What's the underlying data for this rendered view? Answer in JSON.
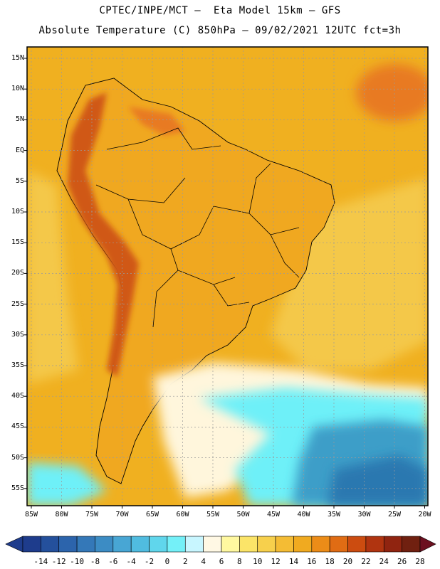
{
  "header": {
    "line1": "CPTEC/INPE/MCT –  Eta Model 15km – GFS",
    "line2": "Absolute Temperature (C) 850hPa – 09/02/2021 12UTC fct=3h"
  },
  "map": {
    "lat_labels": [
      "15N",
      "10N",
      "5N",
      "EQ",
      "5S",
      "10S",
      "15S",
      "20S",
      "25S",
      "30S",
      "35S",
      "40S",
      "45S",
      "50S",
      "55S"
    ],
    "lon_labels": [
      "85W",
      "80W",
      "75W",
      "70W",
      "65W",
      "60W",
      "55W",
      "50W",
      "45W",
      "40W",
      "35W",
      "30W",
      "25W",
      "20W"
    ],
    "colors": {
      "ocean_warm": "#f0b020",
      "ocean_mid": "#f4c848",
      "land": "#f0a820",
      "highland": "#e87a20",
      "andes_hot": "#d05818",
      "cold_light": "#bff4ff",
      "cold_cyan": "#6ef0f8",
      "cold_blue": "#3c9ec8",
      "cold_deep": "#2c78b0",
      "pale": "#fff6dc"
    }
  },
  "colorbar": {
    "labels": [
      "-14",
      "-12",
      "-10",
      "-8",
      "-6",
      "-4",
      "-2",
      "0",
      "2",
      "4",
      "6",
      "8",
      "10",
      "12",
      "14",
      "16",
      "18",
      "20",
      "22",
      "24",
      "26",
      "28"
    ],
    "colors": [
      "#1e3c8c",
      "#24509c",
      "#2c64ac",
      "#3478b8",
      "#3c8cc4",
      "#48a6d4",
      "#50bce0",
      "#60d6ec",
      "#74f0f8",
      "#c8f6ff",
      "#fff8e4",
      "#fff8a0",
      "#fbe468",
      "#f7d04c",
      "#f4bc34",
      "#f0aa20",
      "#ec8c18",
      "#e06c14",
      "#cc4c10",
      "#b03410",
      "#902410",
      "#702010"
    ],
    "min_color": "#1e3c8c",
    "max_color": "#6c1020"
  }
}
